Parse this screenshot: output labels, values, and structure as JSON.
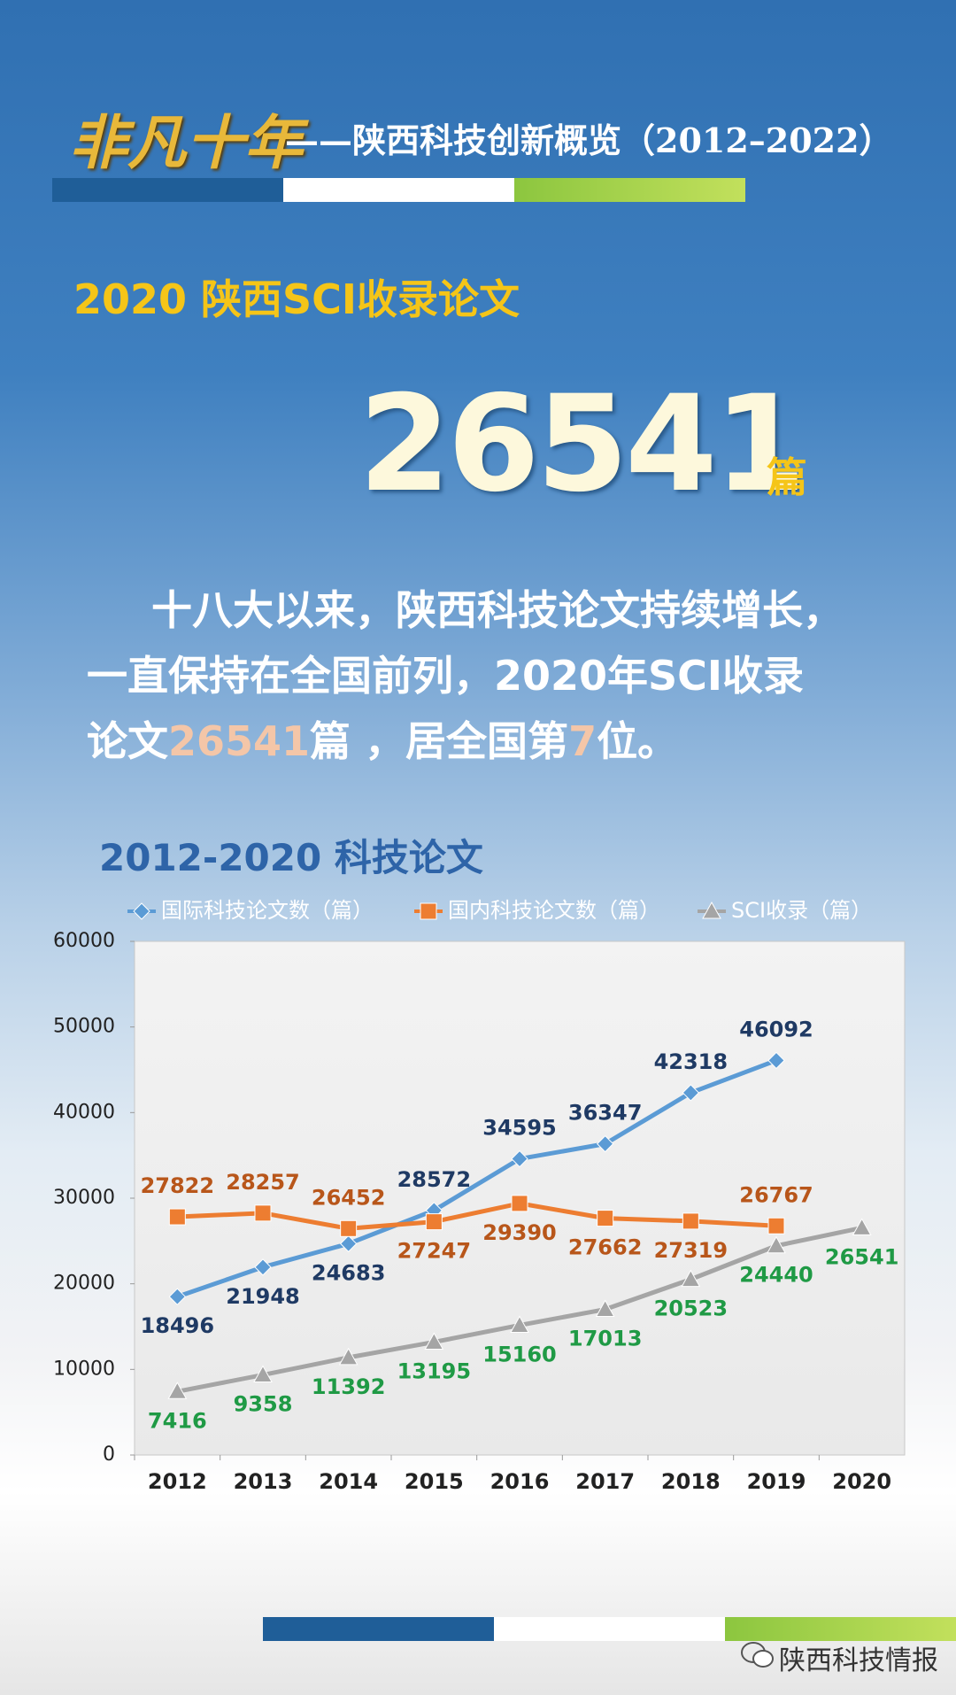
{
  "header": {
    "brand": "非凡十年",
    "title": "——陕西科技创新概览（2012–2022）"
  },
  "heading": "2020 陕西SCI收录论文",
  "big_number": {
    "value": "26541",
    "unit": "篇"
  },
  "paragraph": {
    "lines": [
      [
        "十八大以来，陕西科技论文持续增长，"
      ],
      [
        "一直保持在全国前列，2020年SCI收录"
      ],
      [
        "论文",
        "26541",
        "篇 ，居全国第",
        "7",
        "位。"
      ]
    ]
  },
  "chart_data": {
    "type": "line",
    "title": "2012-2020 科技论文",
    "categories": [
      "2012",
      "2013",
      "2014",
      "2015",
      "2016",
      "2017",
      "2018",
      "2019",
      "2020"
    ],
    "series": [
      {
        "name": "国际科技论文数（篇）",
        "color": "#5b9bd5",
        "label_color": "#1f3a64",
        "marker": "diamond",
        "values": [
          18496,
          21948,
          24683,
          28572,
          34595,
          36347,
          42318,
          46092,
          null
        ]
      },
      {
        "name": "国内科技论文数（篇）",
        "color": "#ed7d31",
        "label_color": "#b8561a",
        "marker": "square",
        "values": [
          27822,
          28257,
          26452,
          27247,
          29390,
          27662,
          27319,
          26767,
          null
        ]
      },
      {
        "name": "SCI收录（篇）",
        "color": "#a5a5a5",
        "label_color": "#1f9a45",
        "marker": "triangle",
        "values": [
          7416,
          9358,
          11392,
          13195,
          15160,
          17013,
          20523,
          24440,
          26541
        ]
      }
    ],
    "ylim": [
      0,
      60000
    ],
    "yticks": [
      0,
      10000,
      20000,
      30000,
      40000,
      50000,
      60000
    ],
    "grid": false
  },
  "footer": {
    "source": "陕西科技情报"
  }
}
